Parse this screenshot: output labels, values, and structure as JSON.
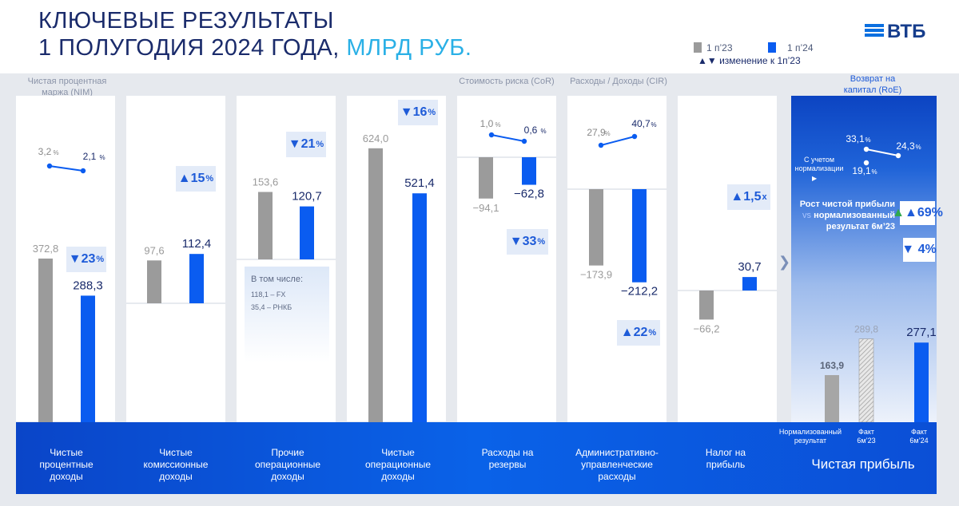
{
  "header": {
    "title_line1": "КЛЮЧЕВЫЕ РЕЗУЛЬТАТЫ",
    "title_line2": "1 ПОЛУГОДИЯ 2024 ГОДА,",
    "title_unit": "МЛРД РУБ.",
    "legend_prev": "1 п’23",
    "legend_curr": "1 п’24",
    "legend_change": "▲▼ изменение к 1п’23",
    "logo": "ВТБ"
  },
  "colors": {
    "prev": "#9b9b9b",
    "curr": "#0a5cf0",
    "accent": "#1e5bd8",
    "band": "#0a55dc",
    "title": "#1a2b6b"
  },
  "top_labels": {
    "nim": "Чистая процентная маржа (NIM)",
    "cor": "Стоимость риска (CoR)",
    "cir": "Расходы / Доходы (CIR)",
    "roe": "Возврат на капитал (RoE)"
  },
  "callout": {
    "title": "В том числе:",
    "items": [
      "118,1 – FX",
      "35,4 – РНКБ"
    ]
  },
  "roe": {
    "normalization_label": "С учетом нормализации",
    "growth_label": "Рост чистой прибыли",
    "vs": "vs",
    "growth_label2": "нормализованный результат 6м’23",
    "growth_vs_fact": "▲69%",
    "growth_vs_norm": "▼ 4%"
  },
  "bottom_labels": {
    "nii": "Чистые процентные доходы",
    "nci": "Чистые комиссионные доходы",
    "other": "Прочие операционные доходы",
    "opinc": "Чистые операционные доходы",
    "prov": "Расходы на резервы",
    "admin": "Административно-управленческие расходы",
    "tax": "Налог на прибыль",
    "np_norm": "Нормализованный результат",
    "np_fact23": "Факт 6м’23",
    "np_fact24": "Факт 6м’24",
    "net_profit": "Чистая прибыль"
  },
  "chart_data": {
    "type": "bar",
    "title": "Ключевые результаты 1 полугодия 2024 года, млрд руб.",
    "series_names": [
      "1 п’23",
      "1 п’24"
    ],
    "categories": [
      {
        "name": "Чистые процентные доходы",
        "prev": 372.8,
        "curr": 288.3,
        "prev_label": "372,8",
        "curr_label": "288,3",
        "change_dir": "down",
        "change": "23",
        "change_unit": "%",
        "ratio_name": "NIM",
        "ratio_prev": "3,2",
        "ratio_curr": "2,1",
        "ratio_unit": "%"
      },
      {
        "name": "Чистые комиссионные доходы",
        "prev": 97.6,
        "curr": 112.4,
        "prev_label": "97,6",
        "curr_label": "112,4",
        "change_dir": "up",
        "change": "15",
        "change_unit": "%"
      },
      {
        "name": "Прочие операционные доходы",
        "prev": 153.6,
        "curr": 120.7,
        "prev_label": "153,6",
        "curr_label": "120,7",
        "change_dir": "down",
        "change": "21",
        "change_unit": "%"
      },
      {
        "name": "Чистые операционные доходы",
        "prev": 624.0,
        "curr": 521.4,
        "prev_label": "624,0",
        "curr_label": "521,4",
        "change_dir": "down",
        "change": "16",
        "change_unit": "%"
      },
      {
        "name": "Расходы на резервы",
        "prev": -94.1,
        "curr": -62.8,
        "prev_label": "−94,1",
        "curr_label": "−62,8",
        "change_dir": "down",
        "change": "33",
        "change_unit": "%",
        "ratio_name": "CoR",
        "ratio_prev": "1,0",
        "ratio_curr": "0,6",
        "ratio_unit": "%"
      },
      {
        "name": "Административно-управленческие расходы",
        "prev": -173.9,
        "curr": -212.2,
        "prev_label": "−173,9",
        "curr_label": "−212,2",
        "change_dir": "up",
        "change": "22",
        "change_unit": "%",
        "ratio_name": "CIR",
        "ratio_prev": "27,9",
        "ratio_curr": "40,7",
        "ratio_unit": "%"
      },
      {
        "name": "Налог на прибыль",
        "prev": -66.2,
        "curr": 30.7,
        "prev_label": "−66,2",
        "curr_label": "30,7",
        "change_dir": "up",
        "change": "1,5",
        "change_unit": "x"
      }
    ],
    "net_profit": {
      "name": "Чистая прибыль",
      "normalized_6m23": 163.9,
      "normalized_label": "163,9",
      "fact_6m23": 289.8,
      "fact23_label": "289,8",
      "fact_6m24": 277.1,
      "fact24_label": "277,1"
    },
    "roe": {
      "prev": "33,1",
      "curr": "24,3",
      "normalized_prev": "19,1",
      "unit": "%"
    }
  }
}
